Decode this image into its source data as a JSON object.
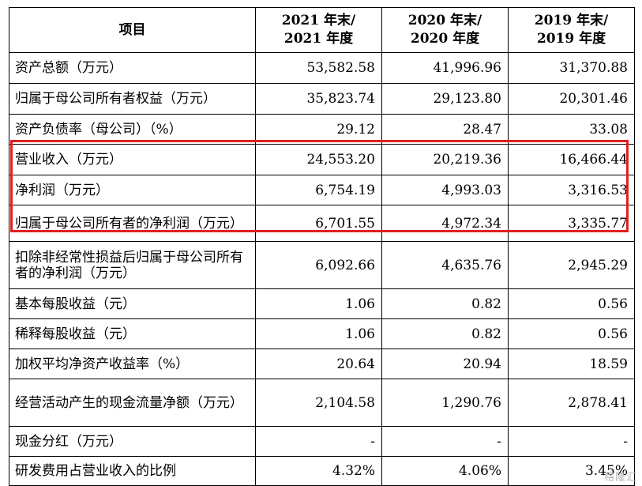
{
  "table": {
    "headers": [
      {
        "line1": "项目",
        "line2": ""
      },
      {
        "line1": "2021 年末/",
        "line2": "2021 年度"
      },
      {
        "line1": "2020 年末/",
        "line2": "2020 年度"
      },
      {
        "line1": "2019 年末/",
        "line2": "2019 年度"
      }
    ],
    "rows": [
      {
        "label": "资产总额（万元）",
        "values": [
          "53,582.58",
          "41,996.96",
          "31,370.88"
        ]
      },
      {
        "label": "归属于母公司所有者权益（万元）",
        "values": [
          "35,823.74",
          "29,123.80",
          "20,301.46"
        ]
      },
      {
        "label": "资产负债率（母公司）（%）",
        "values": [
          "29.12",
          "28.47",
          "33.08"
        ]
      },
      {
        "label": "营业收入（万元）",
        "values": [
          "24,553.20",
          "20,219.36",
          "16,466.44"
        ]
      },
      {
        "label": "净利润（万元）",
        "values": [
          "6,754.19",
          "4,993.03",
          "3,316.53"
        ]
      },
      {
        "label": "归属于母公司所有者的净利润（万元）",
        "values": [
          "6,701.55",
          "4,972.34",
          "3,335.77"
        ]
      },
      {
        "label": "扣除非经常性损益后归属于母公司所有者的净利润（万元）",
        "values": [
          "6,092.66",
          "4,635.76",
          "2,945.29"
        ]
      },
      {
        "label": "基本每股收益（元）",
        "values": [
          "1.06",
          "0.82",
          "0.56"
        ]
      },
      {
        "label": "稀释每股收益（元）",
        "values": [
          "1.06",
          "0.82",
          "0.56"
        ]
      },
      {
        "label": "加权平均净资产收益率（%）",
        "values": [
          "20.64",
          "20.94",
          "18.59"
        ]
      },
      {
        "label": "经营活动产生的现金流量净额（万元）",
        "values": [
          "2,104.58",
          "1,290.76",
          "2,878.41"
        ]
      },
      {
        "label": "现金分红（万元）",
        "values": [
          "-",
          "-",
          "-"
        ]
      },
      {
        "label": "研发费用占营业收入的比例",
        "values": [
          "4.32%",
          "4.06%",
          "3.45%"
        ]
      }
    ]
  },
  "highlight": {
    "color": "#e02020"
  },
  "watermark": "格隆汇"
}
